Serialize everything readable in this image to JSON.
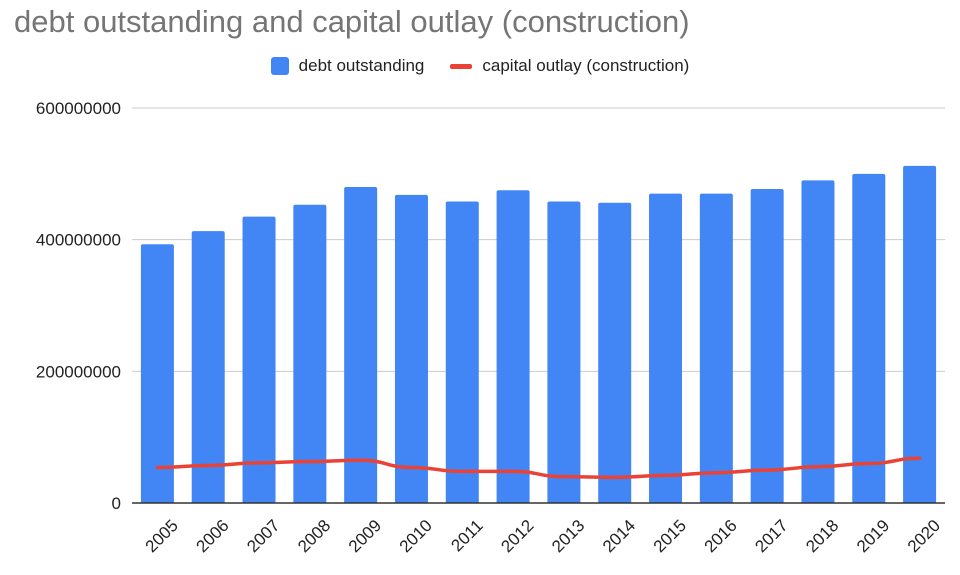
{
  "chart_data": {
    "type": "bar",
    "title": "debt outstanding and capital outlay (construction)",
    "categories": [
      "2005",
      "2006",
      "2007",
      "2008",
      "2009",
      "2010",
      "2011",
      "2012",
      "2013",
      "2014",
      "2015",
      "2016",
      "2017",
      "2018",
      "2019",
      "2020"
    ],
    "series": [
      {
        "name": "debt outstanding",
        "type": "bar",
        "color": "#4285f4",
        "values": [
          393000000,
          413000000,
          435000000,
          453000000,
          480000000,
          468000000,
          458000000,
          475000000,
          458000000,
          456000000,
          470000000,
          470000000,
          477000000,
          490000000,
          500000000,
          512000000
        ]
      },
      {
        "name": "capital outlay (construction)",
        "type": "line",
        "color": "#ea4335",
        "values": [
          54000000,
          57000000,
          61000000,
          63000000,
          65000000,
          54000000,
          48000000,
          48000000,
          40000000,
          39000000,
          42000000,
          46000000,
          50000000,
          55000000,
          60000000,
          68000000
        ]
      }
    ],
    "yticks": [
      "0",
      "200000000",
      "400000000",
      "600000000"
    ],
    "ylim": [
      0,
      600000000
    ],
    "xlabel": "",
    "ylabel": "",
    "legend": "top-center",
    "grid": true
  }
}
